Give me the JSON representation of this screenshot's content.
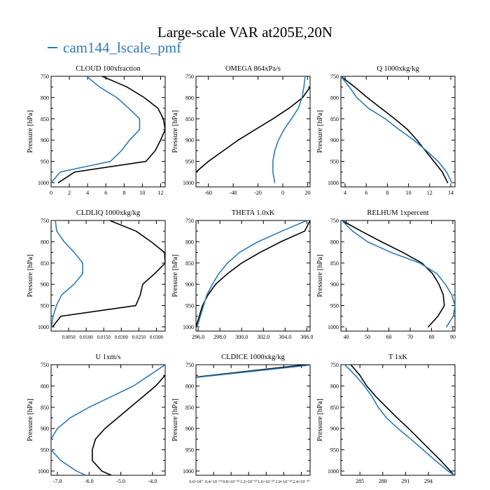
{
  "title": "Large-scale VAR at205E,20N",
  "legend": [
    {
      "label": "cam144_lscale_pmf",
      "color": "#2b7bb9"
    }
  ],
  "colors": {
    "model": "#2b7bb9",
    "reference": "#000000"
  },
  "chart_data": [
    {
      "type": "line",
      "title": "CLOUD  100xfraction",
      "ylabel": "Pressure [hPa]",
      "xlim": [
        0,
        12.5
      ],
      "ylim": [
        750,
        1010
      ],
      "y_inverted": true,
      "xticks": [
        "0",
        "2",
        "4",
        "6",
        "8",
        "10",
        "12"
      ],
      "yticks": [
        "750",
        "800",
        "850",
        "900",
        "950",
        "1000"
      ],
      "series": [
        {
          "name": "cam144_lscale_pmf",
          "color": "#2b7bb9",
          "y": [
            750,
            775,
            800,
            825,
            850,
            875,
            900,
            925,
            950,
            975,
            1000
          ],
          "x": [
            3.9,
            5.3,
            7.2,
            8.5,
            9.7,
            9.7,
            8.6,
            7.7,
            6.5,
            1.0,
            0.0
          ]
        },
        {
          "color": "#000000",
          "y": [
            750,
            775,
            800,
            825,
            850,
            875,
            900,
            925,
            950,
            975,
            1000
          ],
          "x": [
            5.6,
            8.3,
            10.2,
            11.7,
            12.3,
            12.5,
            12.0,
            11.4,
            10.4,
            2.6,
            0.8
          ]
        }
      ]
    },
    {
      "type": "line",
      "title": "OMEGA  864xPa/s",
      "ylabel": "Pressure [hPa]",
      "xlim": [
        -70,
        22
      ],
      "ylim": [
        750,
        1010
      ],
      "y_inverted": true,
      "xticks": [
        "-60",
        "-40",
        "-20",
        "0",
        "20"
      ],
      "yticks": [
        "750",
        "800",
        "850",
        "900",
        "950",
        "1000"
      ],
      "series": [
        {
          "name": "cam144_lscale_pmf",
          "color": "#2b7bb9",
          "y": [
            750,
            775,
            800,
            825,
            850,
            875,
            900,
            925,
            950,
            975,
            1000
          ],
          "x": [
            18.0,
            17.0,
            15.5,
            12.5,
            7.0,
            1.0,
            -3.5,
            -6.5,
            -8.0,
            -8.0,
            -6.5
          ]
        },
        {
          "color": "#000000",
          "y": [
            775,
            800,
            825,
            850,
            875,
            900,
            925,
            950,
            975
          ],
          "x": [
            22.0,
            16.0,
            5.0,
            -8.0,
            -22.0,
            -36.0,
            -48.0,
            -60.0,
            -70.0
          ]
        }
      ]
    },
    {
      "type": "line",
      "title": "Q  1000xkg/kg",
      "ylabel": "Pressure [hPa]",
      "xlim": [
        3.6,
        14.4
      ],
      "ylim": [
        750,
        1010
      ],
      "y_inverted": true,
      "xticks": [
        "4",
        "6",
        "8",
        "10",
        "12",
        "14"
      ],
      "yticks": [
        "750",
        "800",
        "850",
        "900",
        "950",
        "1000"
      ],
      "series": [
        {
          "name": "cam144_lscale_pmf",
          "color": "#2b7bb9",
          "y": [
            750,
            775,
            800,
            825,
            850,
            875,
            900,
            925,
            950,
            975,
            1000
          ],
          "x": [
            3.6,
            4.4,
            5.1,
            6.2,
            7.8,
            9.1,
            10.5,
            11.7,
            12.8,
            13.6,
            14.1
          ]
        },
        {
          "color": "#000000",
          "y": [
            750,
            775,
            800,
            825,
            850,
            875,
            900,
            925,
            950,
            975,
            1000
          ],
          "x": [
            3.6,
            4.9,
            6.1,
            7.4,
            8.7,
            9.9,
            10.8,
            11.6,
            12.4,
            13.2,
            13.7
          ]
        }
      ]
    },
    {
      "type": "line",
      "title": "CLDLIQ  1000xkg/kg",
      "ylabel": "Pressure [hPa]",
      "xlim": [
        0,
        0.0325
      ],
      "ylim": [
        750,
        1010
      ],
      "y_inverted": true,
      "xticks": [
        "0.0050",
        "0.0100",
        "0.0150",
        "0.0200",
        "0.0250",
        "0.0300"
      ],
      "yticks": [
        "750",
        "800",
        "850",
        "900",
        "950",
        "1000"
      ],
      "series": [
        {
          "name": "cam144_lscale_pmf",
          "color": "#2b7bb9",
          "y": [
            750,
            775,
            800,
            825,
            850,
            875,
            900,
            925,
            950,
            975,
            1000
          ],
          "x": [
            0.0012,
            0.0016,
            0.0037,
            0.0066,
            0.009,
            0.009,
            0.0065,
            0.003,
            0.0015,
            0.0006,
            0.0001
          ]
        },
        {
          "color": "#000000",
          "y": [
            750,
            775,
            800,
            825,
            850,
            875,
            900,
            925,
            950,
            975,
            1000
          ],
          "x": [
            0.0167,
            0.0242,
            0.0285,
            0.0323,
            0.0325,
            0.0295,
            0.0261,
            0.0254,
            0.0241,
            0.0028,
            0.0004
          ]
        }
      ]
    },
    {
      "type": "line",
      "title": "THETA  1.0xK",
      "ylabel": "Pressure [hPa]",
      "xlim": [
        295.8,
        306.3
      ],
      "ylim": [
        750,
        1010
      ],
      "y_inverted": true,
      "xticks": [
        "296.0",
        "298.0",
        "300.0",
        "302.0",
        "304.0",
        "306.0"
      ],
      "yticks": [
        "750",
        "800",
        "850",
        "900",
        "950",
        "1000"
      ],
      "series": [
        {
          "name": "cam144_lscale_pmf",
          "color": "#2b7bb9",
          "y": [
            750,
            775,
            800,
            825,
            850,
            875,
            900,
            925,
            950,
            975,
            1000
          ],
          "x": [
            306.0,
            303.7,
            301.5,
            299.8,
            298.7,
            297.9,
            297.3,
            296.8,
            296.5,
            296.2,
            295.9
          ]
        },
        {
          "color": "#000000",
          "y": [
            750,
            775,
            800,
            825,
            850,
            875,
            900,
            925,
            950,
            975,
            1000
          ],
          "x": [
            306.3,
            305.8,
            303.6,
            301.7,
            300.0,
            298.7,
            297.6,
            296.9,
            296.4,
            296.1,
            295.8
          ]
        }
      ]
    },
    {
      "type": "line",
      "title": "RELHUM  1xpercent",
      "ylabel": "Pressure [hPa]",
      "xlim": [
        37.5,
        91
      ],
      "ylim": [
        750,
        1010
      ],
      "y_inverted": true,
      "xticks": [
        "40",
        "50",
        "60",
        "70",
        "80",
        "90"
      ],
      "yticks": [
        "750",
        "800",
        "850",
        "900",
        "950",
        "1000"
      ],
      "series": [
        {
          "name": "cam144_lscale_pmf",
          "color": "#2b7bb9",
          "y": [
            750,
            775,
            800,
            825,
            850,
            875,
            900,
            925,
            950,
            975,
            1000
          ],
          "x": [
            38.0,
            43.0,
            50.0,
            61.0,
            74.5,
            82.5,
            86.5,
            89.5,
            91.0,
            90.2,
            87.0
          ]
        },
        {
          "color": "#000000",
          "y": [
            750,
            775,
            800,
            825,
            850,
            875,
            900,
            925,
            950,
            975,
            1000
          ],
          "x": [
            38.0,
            47.0,
            56.5,
            66.5,
            75.5,
            80.5,
            83.5,
            85.5,
            86.0,
            83.0,
            78.5
          ]
        }
      ]
    },
    {
      "type": "line",
      "title": "U  1xm/s",
      "ylabel": "Pressure [hPa]",
      "xlim": [
        -7.2,
        -3.6
      ],
      "ylim": [
        750,
        1010
      ],
      "y_inverted": true,
      "xticks": [
        "-7.0",
        "-6.0",
        "-5.0",
        "-4.0"
      ],
      "yticks": [
        "750",
        "800",
        "850",
        "900",
        "950",
        "1000"
      ],
      "series": [
        {
          "name": "cam144_lscale_pmf",
          "color": "#2b7bb9",
          "y": [
            750,
            775,
            800,
            825,
            850,
            875,
            900,
            925,
            950,
            975,
            1000,
            1010
          ],
          "x": [
            -3.6,
            -4.1,
            -4.6,
            -5.3,
            -6.0,
            -6.6,
            -7.0,
            -7.2,
            -7.2,
            -6.9,
            -6.4,
            -6.1
          ]
        },
        {
          "color": "#000000",
          "y": [
            775,
            800,
            825,
            850,
            875,
            900,
            925,
            950,
            975,
            1000,
            1010
          ],
          "x": [
            -3.6,
            -3.9,
            -4.3,
            -4.7,
            -5.1,
            -5.5,
            -5.8,
            -5.9,
            -5.9,
            -5.6,
            -5.3
          ]
        }
      ]
    },
    {
      "type": "line",
      "title": "CLDICE  1000xkg/kg",
      "ylabel": "Pressure [hPa]",
      "xlim": [
        0,
        2.6e-10
      ],
      "ylim": [
        750,
        1010
      ],
      "y_inverted": true,
      "xticks": [
        "0.0×10⁰",
        "0.4×10⁻¹⁰",
        "0.8×10⁻¹⁰",
        "1.2×10⁻¹⁰",
        "1.6×10⁻¹⁰",
        "2.0×10⁻¹⁰",
        "2.4×10⁻¹⁰"
      ],
      "yticks": [
        "750",
        "800",
        "850",
        "900",
        "950",
        "1000"
      ],
      "series": [
        {
          "name": "cam144_lscale_pmf",
          "color": "#2b7bb9",
          "y": [
            751,
            780
          ],
          "x": [
            2.6e-10,
            0
          ]
        },
        {
          "color": "#000000",
          "y": [
            749,
            779
          ],
          "x": [
            2.6e-10,
            0
          ]
        }
      ]
    },
    {
      "type": "line",
      "title": "T  1xK",
      "ylabel": "Pressure [hPa]",
      "xlim": [
        282.5,
        297.5
      ],
      "ylim": [
        750,
        1010
      ],
      "y_inverted": true,
      "xticks": [
        "285",
        "288",
        "291",
        "294"
      ],
      "yticks": [
        "750",
        "800",
        "850",
        "900",
        "950",
        "1000"
      ],
      "series": [
        {
          "name": "cam144_lscale_pmf",
          "color": "#2b7bb9",
          "y": [
            750,
            775,
            800,
            825,
            850,
            875,
            900,
            925,
            950,
            975,
            1000,
            1010
          ],
          "x": [
            283.0,
            284.4,
            285.6,
            286.6,
            287.4,
            288.5,
            290.0,
            291.7,
            293.3,
            294.9,
            296.6,
            297.4
          ]
        },
        {
          "color": "#000000",
          "y": [
            750,
            775,
            800,
            825,
            850,
            875,
            900,
            925,
            950,
            975,
            1000,
            1010
          ],
          "x": [
            283.8,
            285.0,
            285.9,
            287.1,
            288.5,
            289.9,
            291.4,
            292.8,
            294.2,
            295.6,
            296.9,
            297.4
          ]
        }
      ]
    }
  ]
}
